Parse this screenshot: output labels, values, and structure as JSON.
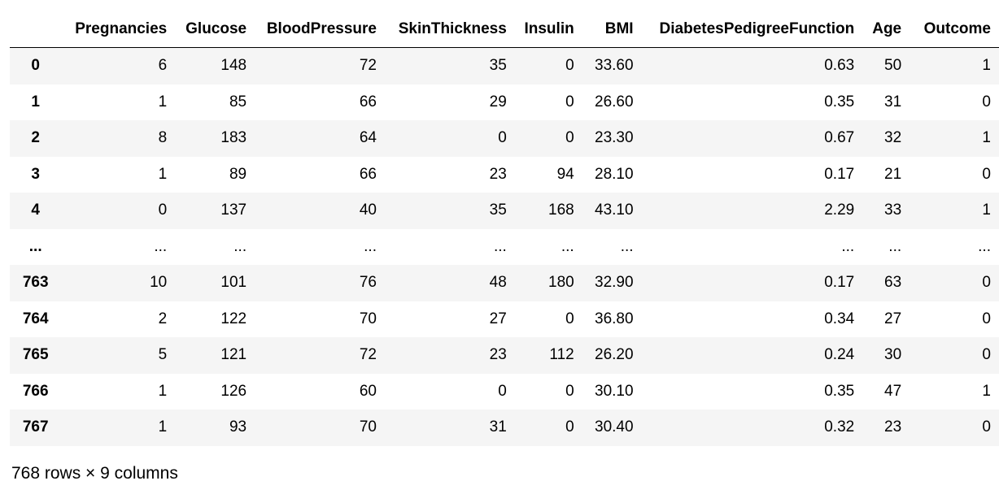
{
  "table": {
    "index_header": "",
    "columns": [
      "Pregnancies",
      "Glucose",
      "BloodPressure",
      "SkinThickness",
      "Insulin",
      "BMI",
      "DiabetesPedigreeFunction",
      "Age",
      "Outcome"
    ],
    "rows": [
      {
        "index": "0",
        "values": [
          "6",
          "148",
          "72",
          "35",
          "0",
          "33.60",
          "0.63",
          "50",
          "1"
        ]
      },
      {
        "index": "1",
        "values": [
          "1",
          "85",
          "66",
          "29",
          "0",
          "26.60",
          "0.35",
          "31",
          "0"
        ]
      },
      {
        "index": "2",
        "values": [
          "8",
          "183",
          "64",
          "0",
          "0",
          "23.30",
          "0.67",
          "32",
          "1"
        ]
      },
      {
        "index": "3",
        "values": [
          "1",
          "89",
          "66",
          "23",
          "94",
          "28.10",
          "0.17",
          "21",
          "0"
        ]
      },
      {
        "index": "4",
        "values": [
          "0",
          "137",
          "40",
          "35",
          "168",
          "43.10",
          "2.29",
          "33",
          "1"
        ]
      },
      {
        "index": "...",
        "values": [
          "...",
          "...",
          "...",
          "...",
          "...",
          "...",
          "...",
          "...",
          "..."
        ]
      },
      {
        "index": "763",
        "values": [
          "10",
          "101",
          "76",
          "48",
          "180",
          "32.90",
          "0.17",
          "63",
          "0"
        ]
      },
      {
        "index": "764",
        "values": [
          "2",
          "122",
          "70",
          "27",
          "0",
          "36.80",
          "0.34",
          "27",
          "0"
        ]
      },
      {
        "index": "765",
        "values": [
          "5",
          "121",
          "72",
          "23",
          "112",
          "26.20",
          "0.24",
          "30",
          "0"
        ]
      },
      {
        "index": "766",
        "values": [
          "1",
          "126",
          "60",
          "0",
          "0",
          "30.10",
          "0.35",
          "47",
          "1"
        ]
      },
      {
        "index": "767",
        "values": [
          "1",
          "93",
          "70",
          "31",
          "0",
          "30.40",
          "0.32",
          "23",
          "0"
        ]
      }
    ]
  },
  "footer": {
    "shape_text": "768 rows × 9 columns"
  }
}
